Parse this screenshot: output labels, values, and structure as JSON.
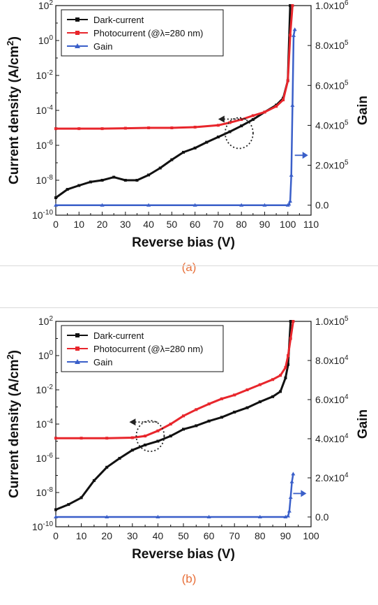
{
  "colors": {
    "dark": "#111111",
    "photo": "#e8262c",
    "gain": "#3a5fc9",
    "panel_label": "#e8703a"
  },
  "chart_data": [
    {
      "type": "line",
      "panel_label": "(a)",
      "xlabel": "Reverse bias (V)",
      "ylabel": "Current density (A/cm",
      "ylabel_sup": "2",
      "ylabel_close": ")",
      "y2label": "Gain",
      "xlim": [
        0,
        110
      ],
      "ylim_log10": [
        -10,
        2
      ],
      "y2lim": [
        -50000,
        1000000
      ],
      "x_ticks": [
        "0",
        "10",
        "20",
        "30",
        "40",
        "50",
        "60",
        "70",
        "80",
        "90",
        "100",
        "110"
      ],
      "y_ticks": [
        {
          "b": "10",
          "e": "2"
        },
        {
          "b": "10",
          "e": "0"
        },
        {
          "b": "10",
          "e": "-2"
        },
        {
          "b": "10",
          "e": "-4"
        },
        {
          "b": "10",
          "e": "-6"
        },
        {
          "b": "10",
          "e": "-8"
        },
        {
          "b": "10",
          "e": "-10"
        }
      ],
      "y2_ticks": [
        {
          "m": "1.0x10",
          "e": "6",
          "v": 1000000
        },
        {
          "m": "8.0x10",
          "e": "5",
          "v": 800000
        },
        {
          "m": "6.0x10",
          "e": "5",
          "v": 600000
        },
        {
          "m": "4.0x10",
          "e": "5",
          "v": 400000
        },
        {
          "m": "2.0x10",
          "e": "5",
          "v": 200000
        },
        {
          "m": "0.0",
          "e": "",
          "v": 0
        }
      ],
      "legend": [
        "Dark-current",
        "Photocurrent (@λ=280 nm)",
        "Gain"
      ],
      "series": [
        {
          "name": "Dark-current",
          "axis": "left",
          "x": [
            0,
            5,
            10,
            15,
            20,
            25,
            30,
            35,
            40,
            45,
            50,
            55,
            60,
            65,
            70,
            75,
            80,
            85,
            90,
            95,
            98,
            100,
            101
          ],
          "y": [
            1e-09,
            3e-09,
            5e-09,
            8e-09,
            1e-08,
            1.5e-08,
            1e-08,
            1e-08,
            2e-08,
            5e-08,
            1.5e-07,
            4e-07,
            7e-07,
            1.5e-06,
            3e-06,
            6e-06,
            1.3e-05,
            3e-05,
            8e-05,
            0.0002,
            0.0005,
            0.005,
            100.0
          ]
        },
        {
          "name": "Photocurrent (@λ=280 nm)",
          "axis": "left",
          "x": [
            0,
            10,
            20,
            30,
            40,
            50,
            60,
            70,
            75,
            80,
            85,
            90,
            95,
            98,
            100,
            101,
            102
          ],
          "y": [
            9e-06,
            9e-06,
            9e-06,
            9.5e-06,
            1e-05,
            1e-05,
            1.1e-05,
            1.4e-05,
            2e-05,
            3e-05,
            5e-05,
            8e-05,
            0.00017,
            0.0004,
            0.005,
            2.0,
            100.0
          ]
        },
        {
          "name": "Gain",
          "axis": "right",
          "x": [
            0,
            20,
            40,
            60,
            80,
            90,
            100,
            100.5,
            101,
            101.5,
            102,
            102.5,
            103
          ],
          "y": [
            0,
            0,
            0,
            0,
            0,
            0,
            0,
            5000,
            20000,
            150000,
            500000,
            850000,
            880000
          ]
        }
      ]
    },
    {
      "type": "line",
      "panel_label": "(b)",
      "xlabel": "Reverse bias (V)",
      "ylabel": "Current density (A/cm",
      "ylabel_sup": "2",
      "ylabel_close": ")",
      "y2label": "Gain",
      "xlim": [
        0,
        100
      ],
      "ylim_log10": [
        -10,
        2
      ],
      "y2lim": [
        -5000,
        100000
      ],
      "x_ticks": [
        "0",
        "10",
        "20",
        "30",
        "40",
        "50",
        "60",
        "70",
        "80",
        "90",
        "100"
      ],
      "y_ticks": [
        {
          "b": "10",
          "e": "2"
        },
        {
          "b": "10",
          "e": "0"
        },
        {
          "b": "10",
          "e": "-2"
        },
        {
          "b": "10",
          "e": "-4"
        },
        {
          "b": "10",
          "e": "-6"
        },
        {
          "b": "10",
          "e": "-8"
        },
        {
          "b": "10",
          "e": "-10"
        }
      ],
      "y2_ticks": [
        {
          "m": "1.0x10",
          "e": "5",
          "v": 100000
        },
        {
          "m": "8.0x10",
          "e": "4",
          "v": 80000
        },
        {
          "m": "6.0x10",
          "e": "4",
          "v": 60000
        },
        {
          "m": "4.0x10",
          "e": "4",
          "v": 40000
        },
        {
          "m": "2.0x10",
          "e": "4",
          "v": 20000
        },
        {
          "m": "0.0",
          "e": "",
          "v": 0
        }
      ],
      "legend": [
        "Dark-current",
        "Photocurrent (@λ=280 nm)",
        "Gain"
      ],
      "series": [
        {
          "name": "Dark-current",
          "axis": "left",
          "x": [
            0,
            5,
            10,
            15,
            20,
            25,
            30,
            35,
            40,
            45,
            50,
            55,
            60,
            65,
            70,
            75,
            80,
            85,
            88,
            90,
            91,
            92
          ],
          "y": [
            1e-09,
            2e-09,
            5e-09,
            5e-08,
            3e-07,
            1e-06,
            3e-06,
            6e-06,
            1e-05,
            2e-05,
            5e-05,
            8e-05,
            0.00015,
            0.00025,
            0.0005,
            0.0009,
            0.002,
            0.004,
            0.008,
            0.05,
            0.3,
            100.0
          ]
        },
        {
          "name": "Photocurrent (@λ=280 nm)",
          "axis": "left",
          "x": [
            0,
            10,
            20,
            30,
            35,
            40,
            45,
            50,
            55,
            60,
            65,
            70,
            75,
            80,
            85,
            88,
            90,
            91,
            92,
            93
          ],
          "y": [
            1.5e-05,
            1.5e-05,
            1.5e-05,
            1.6e-05,
            2e-05,
            4e-05,
            0.0001,
            0.0003,
            0.0007,
            0.0015,
            0.003,
            0.005,
            0.01,
            0.02,
            0.04,
            0.07,
            0.2,
            1.0,
            10.0,
            100.0
          ]
        },
        {
          "name": "Gain",
          "axis": "right",
          "x": [
            0,
            20,
            40,
            60,
            80,
            90,
            91,
            91.5,
            92,
            92.5,
            93
          ],
          "y": [
            0,
            0,
            0,
            0,
            0,
            0,
            500,
            3000,
            10000,
            18000,
            22000
          ]
        }
      ]
    }
  ]
}
